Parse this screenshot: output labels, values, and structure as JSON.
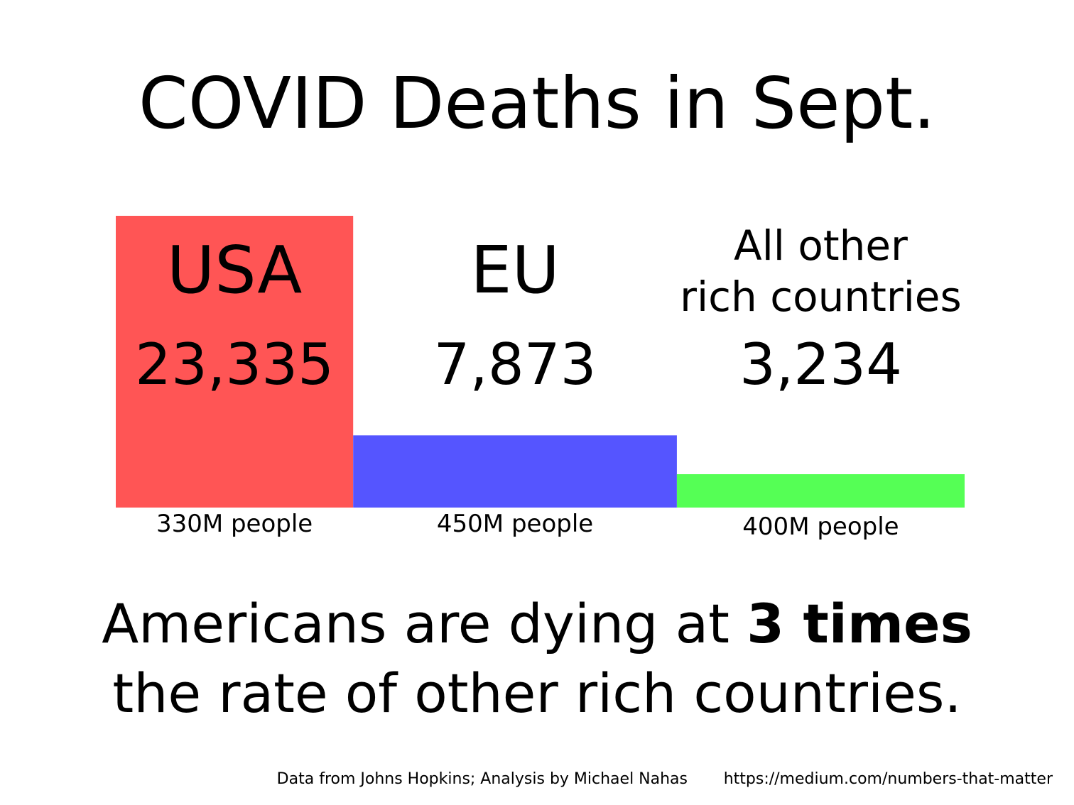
{
  "chart_data": {
    "type": "bar",
    "title": "COVID Deaths in Sept.",
    "categories": [
      {
        "label_lines": [
          "USA"
        ],
        "value_label": "23,335",
        "population_label": "330M people"
      },
      {
        "label_lines": [
          "EU"
        ],
        "value_label": "7,873",
        "population_label": "450M people"
      },
      {
        "label_lines": [
          "All other",
          "rich countries"
        ],
        "value_label": "3,234",
        "population_label": "400M people"
      }
    ],
    "values": [
      23335,
      7873,
      3234
    ],
    "populations_millions": [
      330,
      450,
      400
    ],
    "colors": [
      "#ff5555",
      "#5555ff",
      "#55ff55"
    ]
  },
  "headline": {
    "line1_prefix": "Americans are dying at ",
    "line1_bold": "3 times",
    "line2": "the rate of other rich countries."
  },
  "footer": {
    "credit": "Data from Johns Hopkins; Analysis by Michael Nahas",
    "url": "https://medium.com/numbers-that-matter"
  }
}
